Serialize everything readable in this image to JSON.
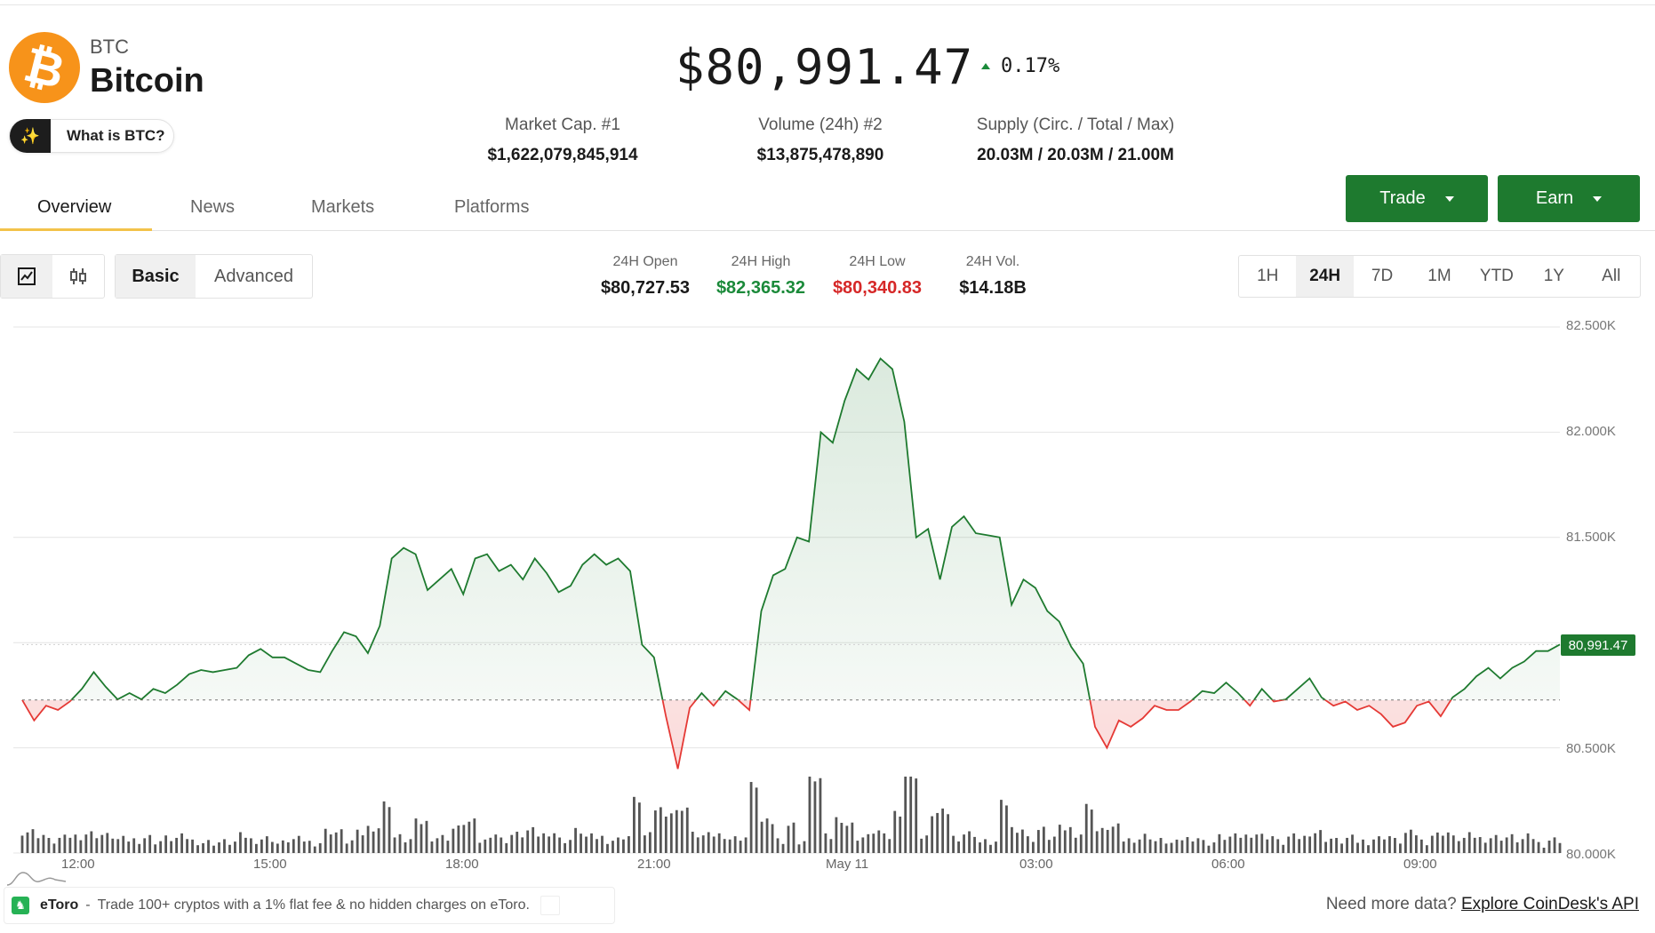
{
  "asset": {
    "symbol": "BTC",
    "name": "Bitcoin",
    "logo_glyph": "₿",
    "logo_color": "#f7931a",
    "what_is_label": "What is BTC?",
    "what_is_icon": "sparkle-icon"
  },
  "price": {
    "value": "$80,991.47",
    "change": "0.17%",
    "change_direction": "up",
    "up_color": "#1b8a3a"
  },
  "stats": [
    {
      "label": "Market Cap. #1",
      "value": "$1,622,079,845,914"
    },
    {
      "label": "Volume (24h) #2",
      "value": "$13,875,478,890"
    },
    {
      "label": "Supply (Circ. / Total / Max)",
      "value": "20.03M / 20.03M / 21.00M"
    }
  ],
  "actions": {
    "trade_label": "Trade",
    "earn_label": "Earn",
    "button_color": "#1e7a2f"
  },
  "tabs": [
    "Overview",
    "News",
    "Markets",
    "Platforms"
  ],
  "active_tab": "Overview",
  "chart_controls": {
    "type_icons": [
      "line-chart-icon",
      "candlestick-icon"
    ],
    "modes": [
      "Basic",
      "Advanced"
    ],
    "active_mode": "Basic"
  },
  "day_stats": [
    {
      "label": "24H Open",
      "value": "$80,727.53",
      "color": "#1a1a1a"
    },
    {
      "label": "24H High",
      "value": "$82,365.32",
      "color": "#1b8a3a"
    },
    {
      "label": "24H Low",
      "value": "$80,340.83",
      "color": "#d62828"
    },
    {
      "label": "24H Vol.",
      "value": "$14.18B",
      "color": "#1a1a1a"
    }
  ],
  "ranges": [
    "1H",
    "24H",
    "7D",
    "1M",
    "YTD",
    "1Y",
    "All"
  ],
  "active_range": "24H",
  "footer": {
    "ad_brand": "eToro",
    "ad_dash": "-",
    "ad_message": "Trade 100+ cryptos with a 1% flat fee & no hidden charges on eToro.",
    "more_data_text": "Need more data?",
    "more_data_link": "Explore CoinDesk's API"
  },
  "chart_data": {
    "type": "area",
    "x_ticks": [
      "12:00",
      "15:00",
      "18:00",
      "21:00",
      "May 11",
      "03:00",
      "06:00",
      "09:00"
    ],
    "y_ticks": [
      "82.500K",
      "82.000K",
      "81.500K",
      "81.000K",
      "80.500K",
      "80.000K"
    ],
    "ylim": [
      80000,
      82500
    ],
    "baseline": 80727.53,
    "last_price_label": "80,991.47",
    "up_color": "#1e7a2f",
    "down_color": "#e53935",
    "price_series": [
      80727,
      80630,
      80700,
      80680,
      80720,
      80780,
      80860,
      80790,
      80730,
      80760,
      80730,
      80780,
      80760,
      80800,
      80850,
      80870,
      80860,
      80870,
      80880,
      80940,
      80970,
      80930,
      80930,
      80900,
      80870,
      80860,
      80960,
      81050,
      81030,
      80950,
      81080,
      81400,
      81450,
      81420,
      81250,
      81300,
      81350,
      81230,
      81400,
      81420,
      81340,
      81370,
      81300,
      81400,
      81330,
      81240,
      81270,
      81370,
      81420,
      81370,
      81400,
      81340,
      80990,
      80930,
      80650,
      80400,
      80690,
      80760,
      80700,
      80770,
      80730,
      80680,
      81150,
      81320,
      81350,
      81500,
      81480,
      82000,
      81950,
      82150,
      82300,
      82250,
      82350,
      82300,
      82050,
      81500,
      81540,
      81300,
      81550,
      81600,
      81520,
      81510,
      81500,
      81180,
      81300,
      81260,
      81150,
      81100,
      80980,
      80900,
      80600,
      80500,
      80630,
      80600,
      80640,
      80700,
      80680,
      80680,
      80720,
      80770,
      80760,
      80810,
      80760,
      80700,
      80780,
      80720,
      80730,
      80780,
      80830,
      80740,
      80700,
      80720,
      80680,
      80700,
      80660,
      80600,
      80620,
      80700,
      80720,
      80650,
      80740,
      80780,
      80840,
      80880,
      80830,
      80880,
      80910,
      80960,
      80960,
      80991
    ]
  }
}
